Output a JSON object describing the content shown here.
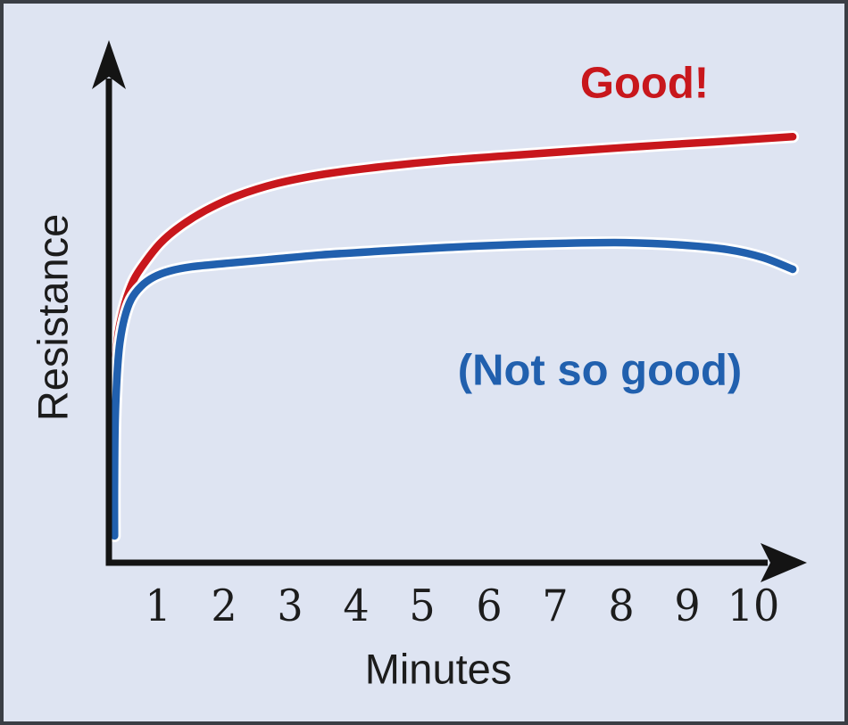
{
  "figure": {
    "background": "#dee4f2",
    "border": "#3a3e45"
  },
  "colors": {
    "red": "#c8171c",
    "blue": "#2160ae",
    "axis": "#141414",
    "text": "#1c1c1c",
    "halo": "#ffffff",
    "bg": "#dee4f2",
    "border": "#3a3e45"
  },
  "labels": {
    "good": "Good!",
    "not_so_good": "(Not so good)",
    "y_axis": "Resistance",
    "x_axis": "Minutes"
  },
  "chart_data": {
    "type": "line",
    "title": "",
    "xlabel": "Minutes",
    "ylabel": "Resistance",
    "x_ticks": [
      "1",
      "2",
      "3",
      "4",
      "5",
      "6",
      "7",
      "8",
      "9",
      "10"
    ],
    "xlim": [
      0,
      10.8
    ],
    "ylim": [
      0,
      110
    ],
    "grid": false,
    "legend_position": "inline-annotations",
    "annotations": [
      {
        "text": "Good!",
        "series": "good",
        "color": "#c8171c"
      },
      {
        "text": "(Not so good)",
        "series": "not-so-good",
        "color": "#2160ae"
      }
    ],
    "series": [
      {
        "id": "good",
        "name": "Good!",
        "color": "#c8171c",
        "points": [
          [
            0.32,
            22.6
          ],
          [
            0.33,
            34.4
          ],
          [
            0.36,
            45.0
          ],
          [
            0.41,
            52.7
          ],
          [
            0.51,
            59.3
          ],
          [
            0.64,
            64.6
          ],
          [
            0.82,
            68.8
          ],
          [
            1.05,
            73.1
          ],
          [
            1.34,
            76.8
          ],
          [
            1.72,
            80.4
          ],
          [
            2.19,
            83.7
          ],
          [
            2.8,
            86.6
          ],
          [
            3.54,
            88.8
          ],
          [
            4.42,
            90.5
          ],
          [
            5.36,
            91.9
          ],
          [
            6.24,
            92.9
          ],
          [
            7.25,
            94.0
          ],
          [
            8.32,
            95.1
          ],
          [
            9.4,
            96.1
          ],
          [
            10.59,
            97.3
          ]
        ]
      },
      {
        "id": "not-so-good",
        "name": "(Not so good)",
        "color": "#2160ae",
        "points": [
          [
            0.35,
            6.1
          ],
          [
            0.35,
            18.5
          ],
          [
            0.36,
            32.4
          ],
          [
            0.39,
            43.0
          ],
          [
            0.43,
            50.1
          ],
          [
            0.5,
            55.8
          ],
          [
            0.6,
            60.1
          ],
          [
            0.75,
            63.1
          ],
          [
            0.94,
            65.2
          ],
          [
            1.18,
            66.6
          ],
          [
            1.52,
            67.6
          ],
          [
            1.99,
            68.3
          ],
          [
            2.66,
            69.2
          ],
          [
            3.47,
            70.3
          ],
          [
            4.42,
            71.2
          ],
          [
            5.36,
            72.0
          ],
          [
            6.3,
            72.6
          ],
          [
            7.25,
            73.0
          ],
          [
            8.06,
            73.1
          ],
          [
            8.86,
            72.6
          ],
          [
            9.61,
            71.5
          ],
          [
            10.14,
            69.7
          ],
          [
            10.59,
            67.0
          ]
        ]
      }
    ]
  }
}
